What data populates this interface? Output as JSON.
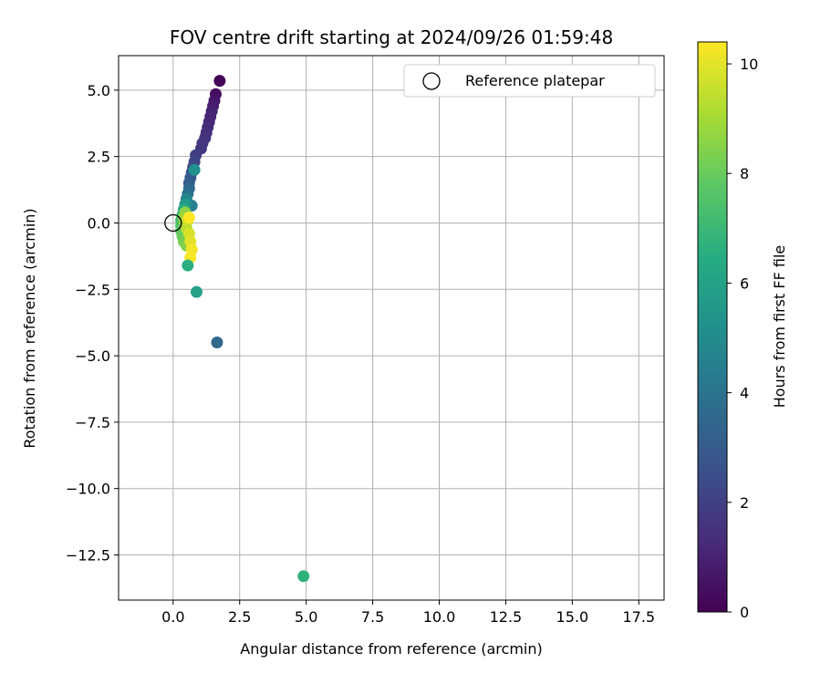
{
  "chart_data": {
    "type": "scatter",
    "title": "FOV centre drift starting at 2024/09/26 01:59:48",
    "xlabel": "Angular distance from reference (arcmin)",
    "ylabel": "Rotation from reference (arcmin)",
    "xlim": [
      -2.05,
      18.45
    ],
    "ylim": [
      -14.2,
      6.3
    ],
    "xticks": [
      0.0,
      2.5,
      5.0,
      7.5,
      10.0,
      12.5,
      15.0,
      17.5
    ],
    "xtick_labels": [
      "0.0",
      "2.5",
      "5.0",
      "7.5",
      "10.0",
      "12.5",
      "15.0",
      "17.5"
    ],
    "yticks": [
      5.0,
      2.5,
      0.0,
      -2.5,
      -5.0,
      -7.5,
      -10.0,
      -12.5
    ],
    "ytick_labels": [
      "5.0",
      "2.5",
      "0.0",
      "−2.5",
      "−5.0",
      "−7.5",
      "−10.0",
      "−12.5"
    ],
    "grid": true,
    "legend": {
      "placement": "top-right",
      "entries": [
        "Reference platepar"
      ]
    },
    "reference_point": {
      "x": 0.0,
      "y": 0.0
    },
    "colorbar": {
      "label": "Hours from first FF file",
      "colormap": "viridis",
      "range": [
        0,
        10.4
      ],
      "ticks": [
        0,
        2,
        4,
        6,
        8,
        10
      ],
      "tick_labels": [
        "0",
        "2",
        "4",
        "6",
        "8",
        "10"
      ]
    },
    "points": [
      {
        "x": 1.75,
        "y": 5.35,
        "h": 0.1
      },
      {
        "x": 1.6,
        "y": 4.85,
        "h": 0.4
      },
      {
        "x": 1.55,
        "y": 4.6,
        "h": 0.6
      },
      {
        "x": 1.5,
        "y": 4.4,
        "h": 0.8
      },
      {
        "x": 1.45,
        "y": 4.2,
        "h": 1.0
      },
      {
        "x": 1.4,
        "y": 4.0,
        "h": 1.1
      },
      {
        "x": 1.35,
        "y": 3.8,
        "h": 1.2
      },
      {
        "x": 1.3,
        "y": 3.6,
        "h": 1.3
      },
      {
        "x": 1.25,
        "y": 3.4,
        "h": 1.4
      },
      {
        "x": 1.2,
        "y": 3.2,
        "h": 1.5
      },
      {
        "x": 1.1,
        "y": 3.0,
        "h": 1.6
      },
      {
        "x": 1.05,
        "y": 2.8,
        "h": 1.7
      },
      {
        "x": 0.85,
        "y": 2.55,
        "h": 1.9
      },
      {
        "x": 0.8,
        "y": 2.3,
        "h": 2.1
      },
      {
        "x": 0.75,
        "y": 2.1,
        "h": 2.3
      },
      {
        "x": 0.7,
        "y": 1.9,
        "h": 2.6
      },
      {
        "x": 0.65,
        "y": 1.7,
        "h": 2.9
      },
      {
        "x": 0.6,
        "y": 1.5,
        "h": 3.1
      },
      {
        "x": 0.6,
        "y": 1.3,
        "h": 3.5
      },
      {
        "x": 0.55,
        "y": 1.1,
        "h": 3.9
      },
      {
        "x": 0.7,
        "y": 0.65,
        "h": 4.5
      },
      {
        "x": 0.5,
        "y": 0.9,
        "h": 4.8
      },
      {
        "x": 0.8,
        "y": 2.0,
        "h": 5.2
      },
      {
        "x": 0.45,
        "y": 0.7,
        "h": 5.5
      },
      {
        "x": 0.4,
        "y": 0.5,
        "h": 6.3
      },
      {
        "x": 0.35,
        "y": 0.3,
        "h": 6.8
      },
      {
        "x": 0.3,
        "y": 0.1,
        "h": 7.2
      },
      {
        "x": 0.3,
        "y": -0.1,
        "h": 7.5
      },
      {
        "x": 0.3,
        "y": -0.3,
        "h": 7.8
      },
      {
        "x": 0.35,
        "y": -0.5,
        "h": 8.0
      },
      {
        "x": 0.4,
        "y": -0.7,
        "h": 8.2
      },
      {
        "x": 0.5,
        "y": -0.85,
        "h": 8.4
      },
      {
        "x": 0.45,
        "y": 0.4,
        "h": 8.6
      },
      {
        "x": 0.4,
        "y": 0.2,
        "h": 8.8
      },
      {
        "x": 0.45,
        "y": 0.0,
        "h": 9.0
      },
      {
        "x": 0.5,
        "y": -0.2,
        "h": 9.3
      },
      {
        "x": 0.55,
        "y": 0.1,
        "h": 9.6
      },
      {
        "x": 0.6,
        "y": -0.4,
        "h": 9.8
      },
      {
        "x": 0.65,
        "y": -0.7,
        "h": 10.0
      },
      {
        "x": 0.7,
        "y": -1.0,
        "h": 10.2
      },
      {
        "x": 0.65,
        "y": -1.3,
        "h": 10.3
      },
      {
        "x": 0.6,
        "y": 0.2,
        "h": 10.4
      },
      {
        "x": 0.55,
        "y": -1.6,
        "h": 6.6
      },
      {
        "x": 0.88,
        "y": -2.6,
        "h": 5.9
      },
      {
        "x": 1.65,
        "y": -4.5,
        "h": 3.6
      },
      {
        "x": 4.9,
        "y": -13.3,
        "h": 6.7
      }
    ]
  }
}
